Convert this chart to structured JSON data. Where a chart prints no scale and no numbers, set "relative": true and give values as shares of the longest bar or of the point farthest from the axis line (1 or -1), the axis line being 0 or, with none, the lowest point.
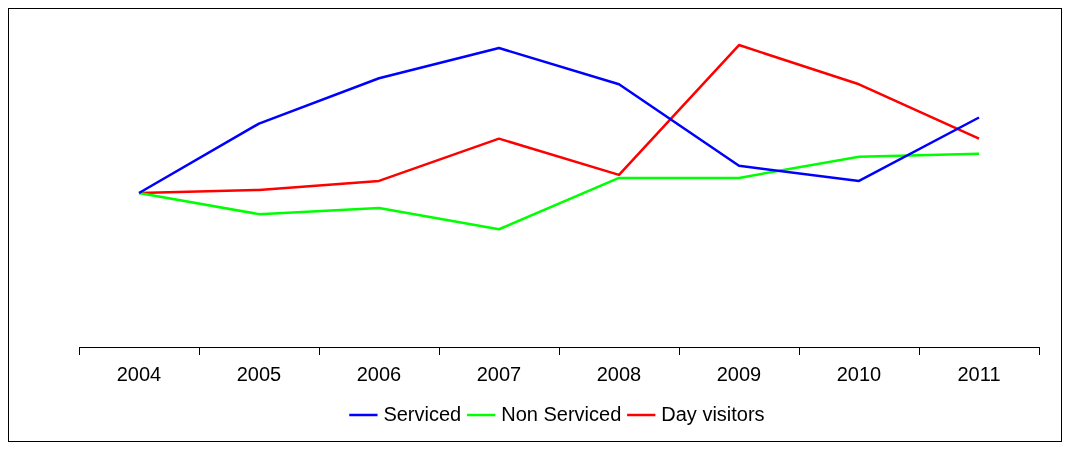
{
  "chart_data": {
    "type": "line",
    "relative": true,
    "categories": [
      "2004",
      "2005",
      "2006",
      "2007",
      "2008",
      "2009",
      "2010",
      "2011"
    ],
    "series": [
      {
        "name": "Serviced",
        "color": "#0000ff",
        "values": [
          0.51,
          0.74,
          0.89,
          0.99,
          0.87,
          0.6,
          0.55,
          0.76
        ]
      },
      {
        "name": "Non Serviced",
        "color": "#00ff00",
        "values": [
          0.51,
          0.44,
          0.46,
          0.39,
          0.56,
          0.56,
          0.63,
          0.64
        ]
      },
      {
        "name": "Day visitors",
        "color": "#ff0000",
        "values": [
          0.51,
          0.52,
          0.55,
          0.69,
          0.57,
          1,
          0.87,
          0.69
        ]
      }
    ],
    "legend": "bottom",
    "grid": false,
    "marker": "none",
    "line_style": "solid"
  }
}
